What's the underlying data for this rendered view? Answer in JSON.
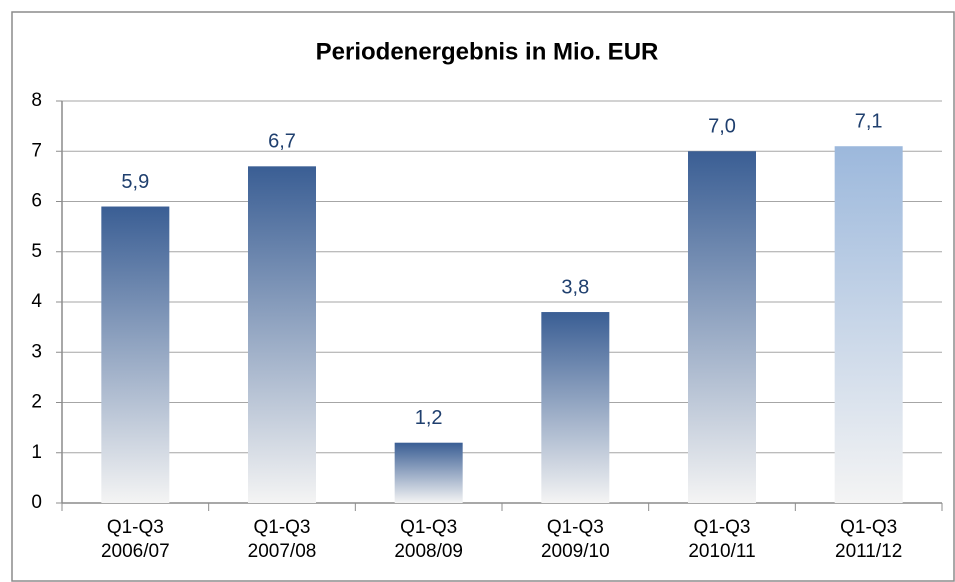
{
  "chart_data": {
    "type": "bar",
    "title": "Periodenergebnis in Mio. EUR",
    "categories": [
      [
        "Q1-Q3",
        "2006/07"
      ],
      [
        "Q1-Q3",
        "2007/08"
      ],
      [
        "Q1-Q3",
        "2008/09"
      ],
      [
        "Q1-Q3",
        "2009/10"
      ],
      [
        "Q1-Q3",
        "2010/11"
      ],
      [
        "Q1-Q3",
        "2011/12"
      ]
    ],
    "values": [
      5.9,
      6.7,
      1.2,
      3.8,
      7.0,
      7.1
    ],
    "value_labels": [
      "5,9",
      "6,7",
      "1,2",
      "3,8",
      "7,0",
      "7,1"
    ],
    "colors": [
      "#3a5e94",
      "#3a5e94",
      "#3a5e94",
      "#3a5e94",
      "#3a5e94",
      "#9cb8dc"
    ],
    "gradient_end": "#f4f4f4",
    "ylim": [
      0,
      8
    ],
    "yticks": [
      0,
      1,
      2,
      3,
      4,
      5,
      6,
      7,
      8
    ],
    "grid": true
  }
}
